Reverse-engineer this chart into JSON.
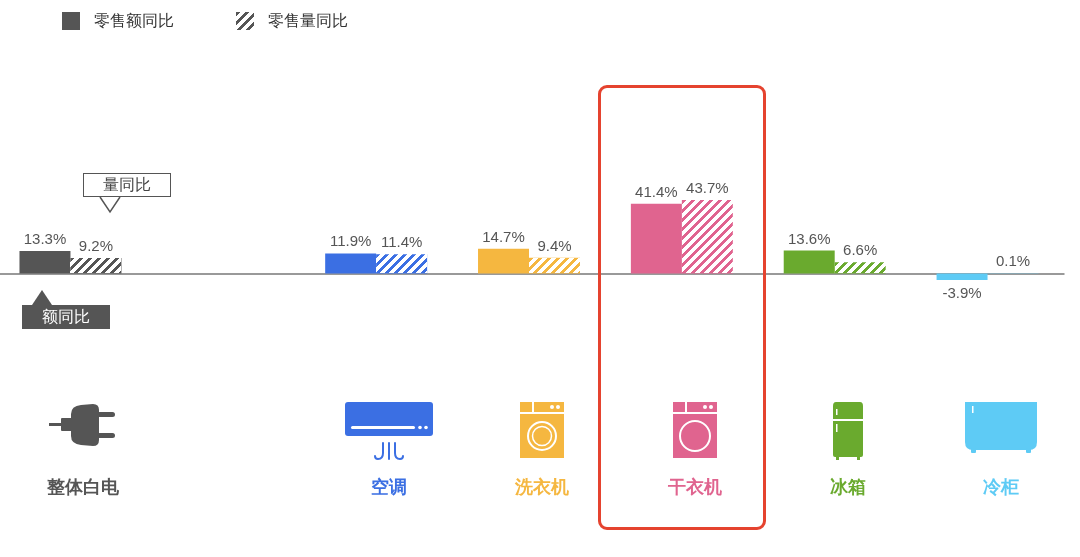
{
  "chart_data": {
    "type": "bar",
    "categories": [
      "整体白电",
      null,
      "空调",
      "洗衣机",
      "干衣机",
      "冰箱",
      "冷柜"
    ],
    "series": [
      {
        "name": "零售额同比",
        "color": "#555555",
        "colors": [
          "#555555",
          null,
          "#3b6fe3",
          "#f5b740",
          "#e0648f",
          "#6aaa2e",
          "#5ecbf5"
        ],
        "values": [
          13.3,
          null,
          11.9,
          14.7,
          41.4,
          13.6,
          -3.9
        ],
        "value_labels": [
          "13.3%",
          null,
          "11.9%",
          "14.7%",
          "41.4%",
          "13.6%",
          "-3.9%"
        ]
      },
      {
        "name": "零售量同比",
        "color": "#555555",
        "colors": [
          "#555555",
          null,
          "#3b6fe3",
          "#f5b740",
          "#e0648f",
          "#6aaa2e",
          "#5ecbf5"
        ],
        "values": [
          9.2,
          null,
          11.4,
          9.4,
          43.7,
          6.6,
          0.1
        ],
        "value_labels": [
          "9.2%",
          null,
          "11.4%",
          "9.4%",
          "43.7%",
          "6.6%",
          "0.1%"
        ]
      }
    ],
    "annotations": [
      "量同比",
      "额同比"
    ],
    "legend": "top left"
  }
}
